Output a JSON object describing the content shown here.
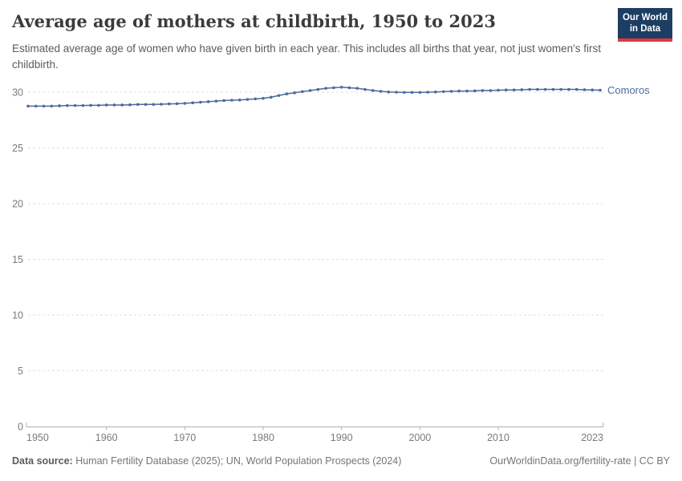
{
  "header": {
    "title": "Average age of mothers at childbirth, 1950 to 2023",
    "subtitle": "Estimated average age of women who have given birth in each year. This includes all births that year, not just women's first childbirth.",
    "logo": {
      "line1": "Our World",
      "line2": "in Data"
    }
  },
  "chart_data": {
    "type": "line",
    "title": "Average age of mothers at childbirth, 1950 to 2023",
    "xlabel": "",
    "ylabel": "",
    "xlim": [
      1950,
      2023
    ],
    "ylim": [
      0,
      31
    ],
    "x_ticks": [
      1950,
      1960,
      1970,
      1980,
      1990,
      2000,
      2010,
      2023
    ],
    "y_ticks": [
      0,
      5,
      10,
      15,
      20,
      25,
      30
    ],
    "grid": "horizontal-dashed",
    "legend_position": "end-of-line-label",
    "x": [
      1950,
      1951,
      1952,
      1953,
      1954,
      1955,
      1956,
      1957,
      1958,
      1959,
      1960,
      1961,
      1962,
      1963,
      1964,
      1965,
      1966,
      1967,
      1968,
      1969,
      1970,
      1971,
      1972,
      1973,
      1974,
      1975,
      1976,
      1977,
      1978,
      1979,
      1980,
      1981,
      1982,
      1983,
      1984,
      1985,
      1986,
      1987,
      1988,
      1989,
      1990,
      1991,
      1992,
      1993,
      1994,
      1995,
      1996,
      1997,
      1998,
      1999,
      2000,
      2001,
      2002,
      2003,
      2004,
      2005,
      2006,
      2007,
      2008,
      2009,
      2010,
      2011,
      2012,
      2013,
      2014,
      2015,
      2016,
      2017,
      2018,
      2019,
      2020,
      2021,
      2022,
      2023
    ],
    "series": [
      {
        "name": "Comoros",
        "color": "#4C6A9C",
        "values": [
          28.75,
          28.75,
          28.75,
          28.75,
          28.78,
          28.8,
          28.8,
          28.8,
          28.82,
          28.82,
          28.85,
          28.85,
          28.85,
          28.87,
          28.9,
          28.9,
          28.9,
          28.92,
          28.95,
          28.97,
          29.0,
          29.05,
          29.1,
          29.15,
          29.2,
          29.25,
          29.28,
          29.3,
          29.35,
          29.4,
          29.45,
          29.55,
          29.7,
          29.85,
          29.95,
          30.05,
          30.15,
          30.25,
          30.35,
          30.4,
          30.45,
          30.4,
          30.35,
          30.25,
          30.15,
          30.08,
          30.02,
          30.0,
          29.98,
          29.98,
          29.98,
          30.0,
          30.02,
          30.05,
          30.08,
          30.1,
          30.1,
          30.12,
          30.15,
          30.15,
          30.18,
          30.2,
          30.2,
          30.22,
          30.25,
          30.25,
          30.25,
          30.25,
          30.25,
          30.25,
          30.25,
          30.22,
          30.2,
          30.18
        ]
      }
    ]
  },
  "footer": {
    "source_label": "Data source:",
    "source_text": " Human Fertility Database (2025); UN, World Population Prospects (2024)",
    "license": "OurWorldinData.org/fertility-rate | CC BY"
  },
  "colors": {
    "line": "#4C6A9C",
    "logo_bg": "#1D3D63",
    "logo_red": "#E0373F",
    "grid": "#E0E0E0",
    "axis": "#B0B0B0",
    "tick_label": "#7A7A7A",
    "title": "#3B3B3B",
    "subtitle": "#5B5B5B",
    "footer": "#757575"
  }
}
